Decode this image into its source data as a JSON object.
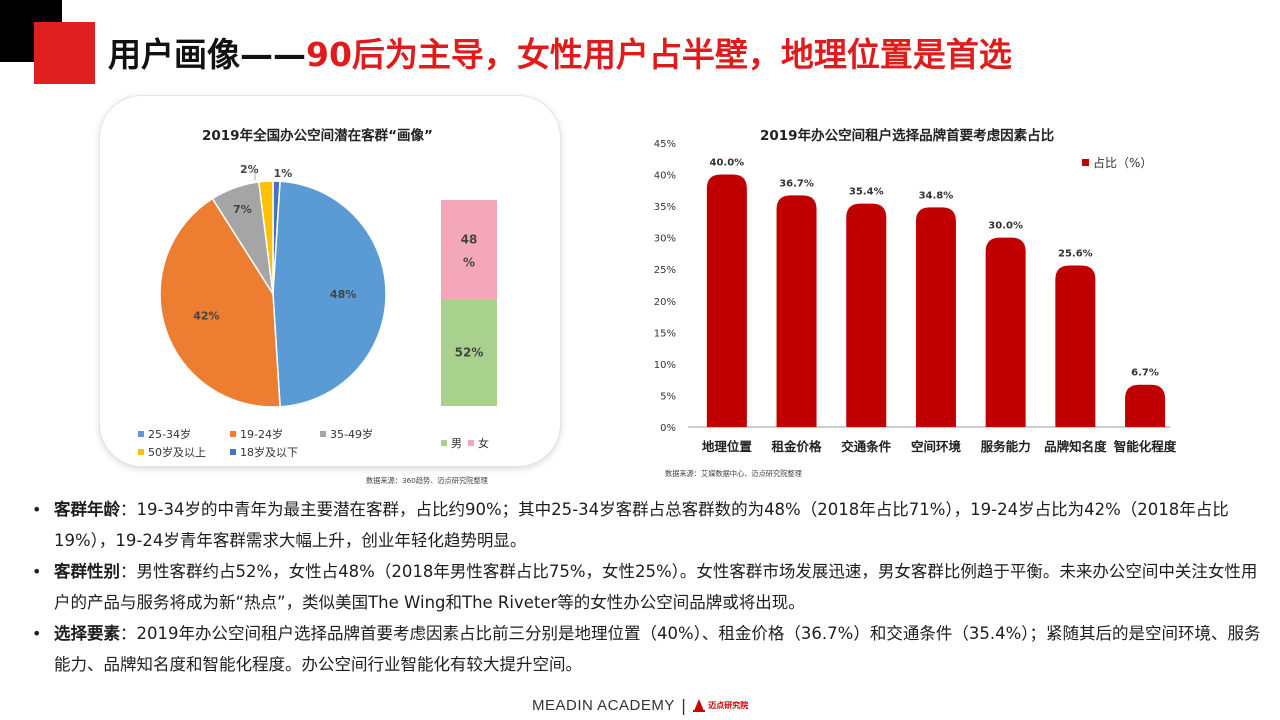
{
  "header": {
    "title_black": "用户画像——",
    "title_red": "90后为主导，女性用户占半壁，地理位置是首选"
  },
  "colors": {
    "accent_red": "#e01b1b",
    "bar_red": "#c00000"
  },
  "chart_data": [
    {
      "type": "pie",
      "title": "2019年全国办公空间潜在客群“画像”",
      "categories": [
        "18岁及以下",
        "25-34岁",
        "19-24岁",
        "35-49岁",
        "50岁及以上"
      ],
      "values": [
        1,
        48,
        42,
        7,
        2
      ],
      "labels": [
        "1%",
        "48%",
        "42%",
        "7%",
        "2%"
      ],
      "colors": [
        "#4472c4",
        "#5b9bd5",
        "#ed7d31",
        "#a5a5a5",
        "#ffc000"
      ],
      "legend": [
        "25-34岁",
        "19-24岁",
        "35-49岁",
        "50岁及以上",
        "18岁及以下"
      ],
      "legend_colors": [
        "#5b9bd5",
        "#ed7d31",
        "#a5a5a5",
        "#ffc000",
        "#4472c4"
      ]
    },
    {
      "type": "bar",
      "stacked": true,
      "series": [
        {
          "name": "男",
          "value": 52,
          "label": "52%",
          "color": "#a9d18e"
        },
        {
          "name": "女",
          "value": 48,
          "label_lines": [
            "48",
            "%"
          ],
          "color": "#f4a7b9"
        }
      ],
      "ylim": [
        0,
        100
      ]
    },
    {
      "type": "bar",
      "title": "2019年办公空间租户选择品牌首要考虑因素占比",
      "categories": [
        "地理位置",
        "租金价格",
        "交通条件",
        "空间环境",
        "服务能力",
        "品牌知名度",
        "智能化程度"
      ],
      "series": [
        {
          "name": "占比（%）",
          "values": [
            40.0,
            36.7,
            35.4,
            34.8,
            30.0,
            25.6,
            6.7
          ]
        }
      ],
      "data_labels": [
        "40.0%",
        "36.7%",
        "35.4%",
        "34.8%",
        "30.0%",
        "25.6%",
        "6.7%"
      ],
      "yticks": [
        "0%",
        "5%",
        "10%",
        "15%",
        "20%",
        "25%",
        "30%",
        "35%",
        "40%",
        "45%"
      ],
      "ylim": [
        0,
        45
      ],
      "legend_position": "top-right",
      "grid": false
    }
  ],
  "sources": {
    "left": "数据来源：360趋势、迈点研究院整理",
    "right": "数据来源：艾媒数据中心、迈点研究院整理"
  },
  "bullets": [
    {
      "bold": "客群年龄",
      "text": "：19-34岁的中青年为最主要潜在客群，占比约90%；其中25-34岁客群占总客群数的为48%（2018年占比71%），19-24岁占比为42%（2018年占比19%），19-24岁青年客群需求大幅上升，创业年轻化趋势明显。"
    },
    {
      "bold": "客群性别",
      "text": "：男性客群约占52%，女性占48%（2018年男性客群占比75%，女性25%）。女性客群市场发展迅速，男女客群比例趋于平衡。未来办公空间中关注女性用户的产品与服务将成为新“热点”，类似美国The Wing和The Riveter等的女性办公空间品牌或将出现。"
    },
    {
      "bold": "选择要素",
      "text": "：2019年办公空间租户选择品牌首要考虑因素占比前三分别是地理位置（40%）、租金价格（36.7%）和交通条件（35.4%）；紧随其后的是空间环境、服务能力、品牌知名度和智能化程度。办公空间行业智能化有较大提升空间。"
    }
  ],
  "footer": {
    "brand": "MEADIN ACADEMY",
    "separator": "|",
    "logo_text": "迈点研究院",
    "logo_icon": "meadin-logo-icon"
  }
}
